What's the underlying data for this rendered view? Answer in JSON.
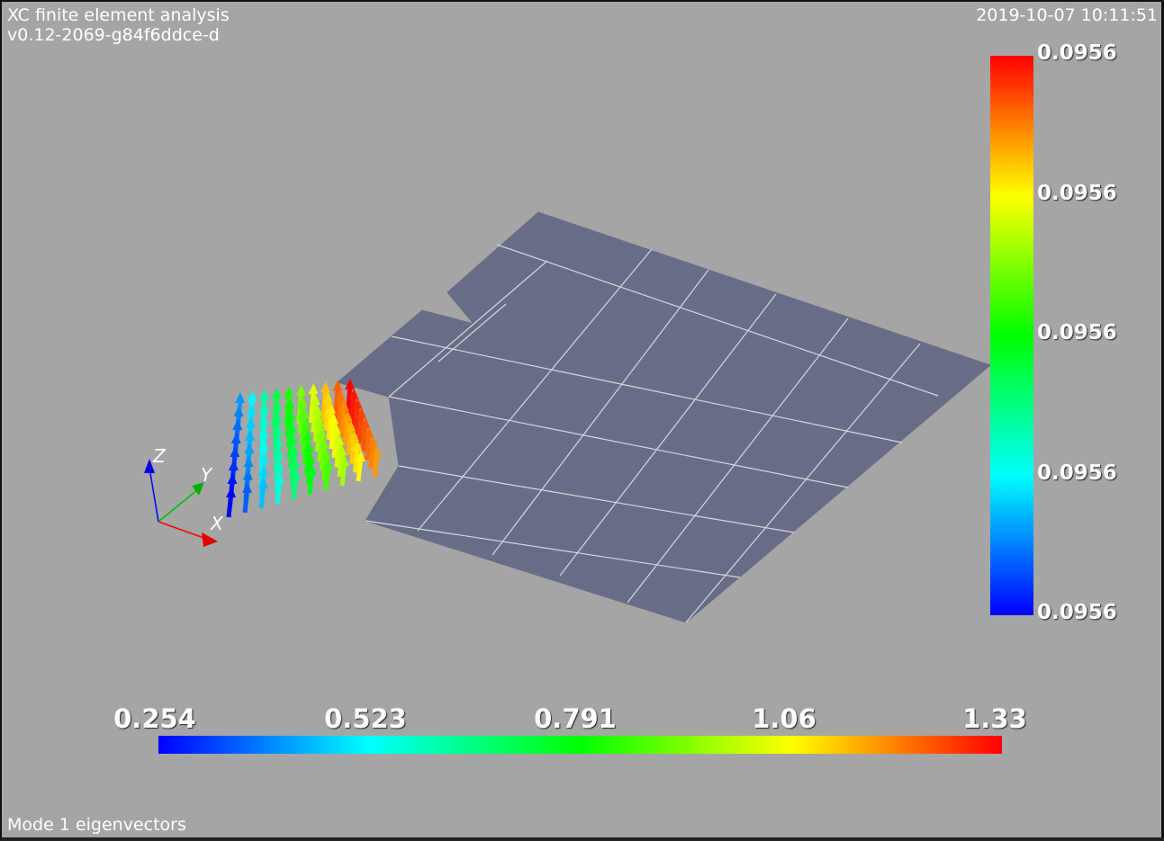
{
  "header": {
    "title": "XC finite element analysis",
    "version": "v0.12-2069-g84f6ddce-d",
    "timestamp": "2019-10-07 10:11:51"
  },
  "footer": {
    "caption": "Mode 1 eigenvectors"
  },
  "vertical_scalar_bar": {
    "labels": [
      "0.0956",
      "0.0956",
      "0.0956",
      "0.0956",
      "0.0956"
    ],
    "colors": [
      "#ff0000",
      "#ffff00",
      "#00ff00",
      "#00ffff",
      "#0000ff"
    ]
  },
  "horizontal_scalar_bar": {
    "labels": [
      "0.254",
      "0.523",
      "0.791",
      "1.06",
      "1.33"
    ],
    "colors": [
      "#0000ff",
      "#00ffff",
      "#00ff00",
      "#ffff00",
      "#ff0000"
    ]
  },
  "axes": {
    "x_label": "X",
    "y_label": "Y",
    "z_label": "Z",
    "x_color": "#ff0000",
    "y_color": "#00c000",
    "z_color": "#0000ff"
  },
  "scene": {
    "background": "#a5a5a5",
    "shell_color": "#686c86",
    "mesh_line_color": "#d6d8e4",
    "icons": [
      "mesh-shell-model",
      "eigenvector-glyphs",
      "axes-triad"
    ]
  }
}
